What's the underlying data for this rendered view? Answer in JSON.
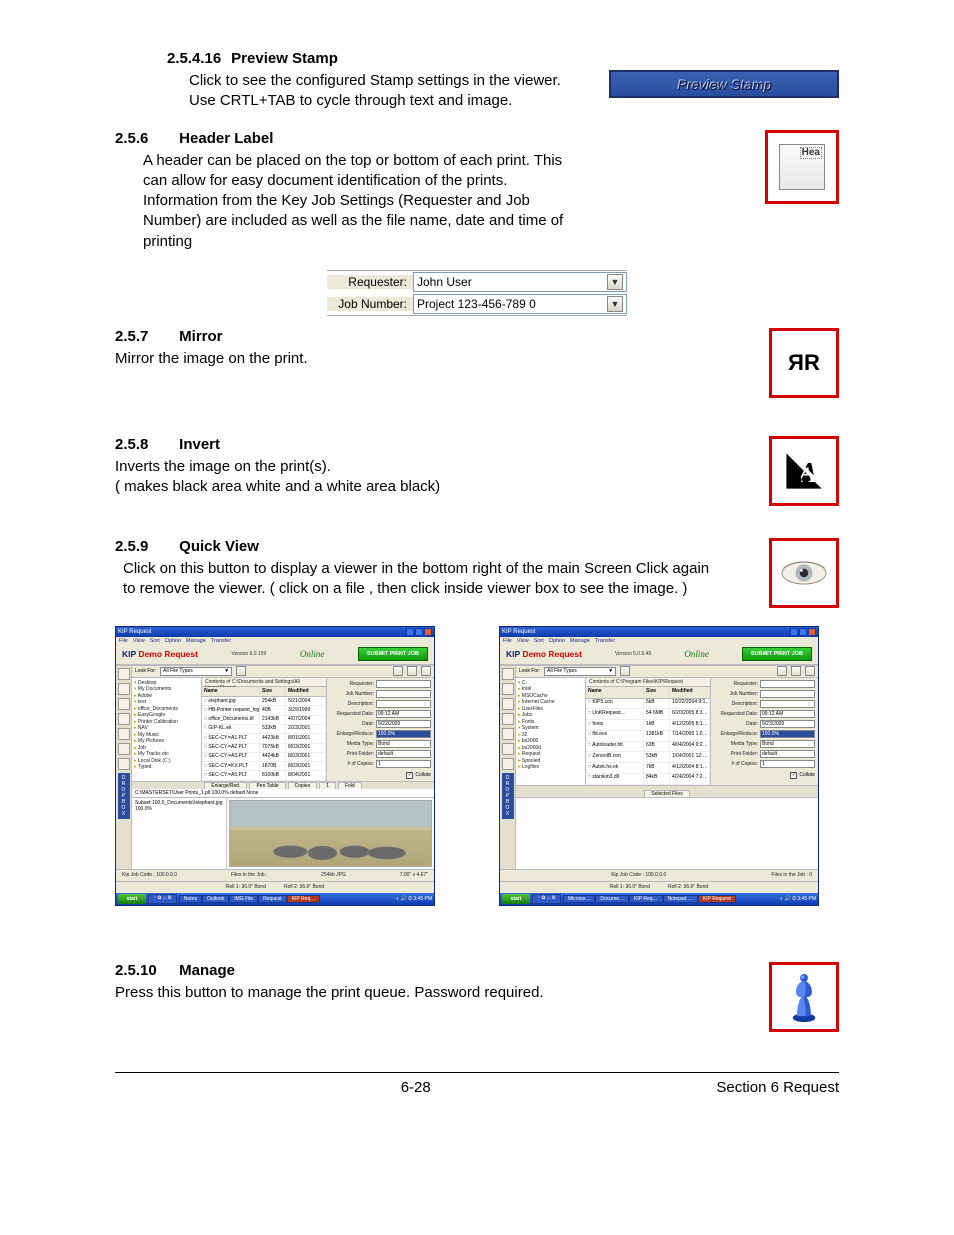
{
  "sections": {
    "preview_stamp": {
      "num": "2.5.4.16",
      "title": "Preview Stamp",
      "body": "Click to see the configured Stamp settings in the viewer.  Use CRTL+TAB to cycle through text and image.",
      "button_label": "Preview Stamp"
    },
    "header_label": {
      "num": "2.5.6",
      "title": "Header Label",
      "body": "A header can be placed on the top or bottom of each print.  This can allow for easy document identification of the prints.  Information from the Key Job Settings (Requester and Job Number) are included as well as the file name, date and time of printing",
      "icon_text": "Hea"
    },
    "requester_form": {
      "requester_label": "Requester:",
      "requester_value": "John User",
      "jobnum_label": "Job Number:",
      "jobnum_value": "Project 123-456-789 0"
    },
    "mirror": {
      "num": "2.5.7",
      "title": "Mirror",
      "body": "Mirror the image on the print.",
      "icon_letters": "ЯR"
    },
    "invert": {
      "num": "2.5.8",
      "title": "Invert",
      "body_l1": "Inverts  the image on the print(s).",
      "body_l2": "( makes black area white and a white area black)"
    },
    "quick_view": {
      "num": "2.5.9",
      "title": "Quick View",
      "body": "Click on this button to display a viewer in the bottom right of the main Screen Click again to remove the viewer. ( click on a file , then click inside viewer box to see the image. )"
    },
    "manage": {
      "num": "2.5.10",
      "title": "Manage",
      "body": "Press this button to manage the print queue. Password required."
    }
  },
  "app": {
    "window_title": "KIP Request",
    "menus": [
      "File",
      "View",
      "Sort",
      "Option",
      "Manage",
      "Transfer"
    ],
    "brand_prefix": "KIP ",
    "brand_demo": "Demo Request",
    "version_left": "Version 6.0.159",
    "version_right": "Version 5.0.5.49",
    "online": "Online",
    "submit_label": "SUBMIT PRINT JOB",
    "lookfor_label": "Look For:",
    "lookfor_left": "All File Types",
    "lookfor_right": "All File Types",
    "path_left": "Contents of C:\\Documents and Settings\\All Users\\Shared",
    "path_right": "Contents of C:\\Program Files\\KIP\\Request",
    "columns": [
      "Name",
      "Size",
      "Modified"
    ],
    "dropbox_letters": [
      "D",
      "R",
      "O",
      "P",
      "B",
      "O",
      "X"
    ],
    "status_left_1": "Kip Job Code :   100.0.0.0",
    "status_left_2": "Files in the Job :",
    "status_left_3": "254kb  JPG",
    "status_left_4": "7.00\" x 4.67\"",
    "status_right_1": "Kip Job Code :   100.0.0.0",
    "status_right_2": "Files in the Job :   0",
    "rolls_left_1": "Roll 1: 36.0\" Bond",
    "rolls_left_2": "Roll 2: 36.0\" Bond",
    "taskbar_start": "start",
    "tree_left": [
      {
        "cls": "folderO",
        "label": "Desktop"
      },
      {
        "cls": "folderO",
        "label": "My Documents"
      },
      {
        "cls": "folder",
        "label": "Adobe"
      },
      {
        "cls": "folderO",
        "label": "test"
      },
      {
        "cls": "folder",
        "label": "office_Documents"
      },
      {
        "cls": "folder",
        "label": "EasyGoogle"
      },
      {
        "cls": "folder",
        "label": "Printer Calibration"
      },
      {
        "cls": "folder",
        "label": "NAV"
      },
      {
        "cls": "folder",
        "label": "My Music"
      },
      {
        "cls": "folder",
        "label": "My Pictures"
      },
      {
        "cls": "folder",
        "label": "Job"
      },
      {
        "cls": "folder",
        "label": "My Tracks etc"
      },
      {
        "cls": "folder",
        "label": "Local Disk (C:)"
      },
      {
        "cls": "folder",
        "label": "Typed"
      }
    ],
    "tree_right": [
      {
        "cls": "folderO",
        "label": "C:"
      },
      {
        "cls": "folder",
        "label": "Intel"
      },
      {
        "cls": "folder",
        "label": "MSOCache"
      },
      {
        "cls": "folder",
        "label": "Internet Cache"
      },
      {
        "cls": "folder",
        "label": "UserFiles"
      },
      {
        "cls": "folder",
        "label": "Jobs"
      },
      {
        "cls": "folder",
        "label": "Fonts"
      },
      {
        "cls": "folderO",
        "label": "System"
      },
      {
        "cls": "folder",
        "label": "32"
      },
      {
        "cls": "folder",
        "label": "bs2000"
      },
      {
        "cls": "folder",
        "label": "bs2000d"
      },
      {
        "cls": "folder",
        "label": "Request"
      },
      {
        "cls": "folder",
        "label": "Spooled"
      },
      {
        "cls": "folder",
        "label": "Logfiles"
      }
    ],
    "files_left": [
      {
        "n": "elephant jpg",
        "s": "254kB",
        "d": "5/21/2004"
      },
      {
        "n": "HB-Printer request_logo…",
        "s": "40B",
        "d": "3/29/1999"
      },
      {
        "n": "office_Documents.tif",
        "s": "2143kB",
        "d": "4/07/2004"
      },
      {
        "n": "GIP-KL.ek",
        "s": "533kB",
        "d": "2/23/2001"
      },
      {
        "n": "SEC-CY.=A1.PLT",
        "s": "4423kB",
        "d": "8/01/2001"
      },
      {
        "n": "SEC-CY.=A2.PLT",
        "s": "7075kB",
        "d": "8/03/2001"
      },
      {
        "n": "SEC-CY.=A3.PLT",
        "s": "4424kB",
        "d": "8/03/2001"
      },
      {
        "n": "SEC-CY.=KX.PLT",
        "s": "1870B",
        "d": "8/03/2001"
      },
      {
        "n": "SEC-CY.=A5.PLT",
        "s": "8100kB",
        "d": "8/04/2001"
      }
    ],
    "files_right": [
      {
        "n": "KIP5.con",
        "s": "5kB",
        "d": "10/22/2004 9:1…"
      },
      {
        "n": "UnKRequest…",
        "s": "54.6MB",
        "d": "6/20/2005 8:3…"
      },
      {
        "n": "fonts",
        "s": "1kB",
        "d": "4/12/2005 8:1…"
      },
      {
        "n": "fld.ece",
        "s": "1381kB",
        "d": "7/14/2005 1:0…"
      },
      {
        "n": "Autoloader.hlt",
        "s": "63B",
        "d": "4/04/2004 9:2…"
      },
      {
        "n": "ZenonIB.con",
        "s": "53kB",
        "d": "1/04/2001 12:…"
      },
      {
        "n": "Autok.hs.ek",
        "s": "7kB",
        "d": "4/12/2004 8:1…"
      },
      {
        "n": "starskin3.dll",
        "s": "84kB",
        "d": "4/24/2004 7:2…"
      }
    ],
    "right_panel": {
      "requester": {
        "label": "Requester:",
        "value": ""
      },
      "jobnum": {
        "label": "Job Number:",
        "value": ""
      },
      "desc": {
        "label": "Description:",
        "value": ""
      },
      "reqdate_left": {
        "label": "Requested Date:",
        "value": "09:12 AM"
      },
      "date_left": {
        "label": "Date:",
        "value": "9/22/2005"
      },
      "enlarge": {
        "label": "Enlarge/Reduce:",
        "value": "100.0%"
      },
      "media": {
        "label": "Media Type:",
        "value": "Bond"
      },
      "fold": {
        "label": "Print Folder:",
        "value": "default"
      },
      "copies": {
        "label": "# of Copies:",
        "value": "1"
      },
      "collate": {
        "label": "Collate",
        "checked": true
      },
      "reqdate_right": {
        "label": "Requested Date:",
        "value": "09:12 AM"
      },
      "date_right": {
        "label": "Date:",
        "value": "9/23/2005"
      }
    },
    "selected_header": "Selected Files",
    "selected_tabs": [
      "Enlarge/Red.",
      "Pen Table",
      "Copies",
      "1",
      "Fold"
    ],
    "selected_file_left": "C:\\MASTERSET\\User Prints_1.plt   100.0%     default     None",
    "taskbar_items_left": [
      "Notes",
      "Outlook",
      "IMG File",
      "Request",
      "KIP Req…"
    ],
    "taskbar_items_right": [
      "Microso…",
      "Docume…",
      "KIP Req…",
      "Notepad …",
      "KIP Request"
    ]
  },
  "footer": {
    "page": "6-28",
    "section": "Section 6     Request"
  },
  "colors": {
    "red_border": "#d40000",
    "xp_blue": "#2a4d9e",
    "xp_blue_light": "#3571e4",
    "xp_green": "#0c9a0c",
    "panel_bg": "#ece9d8"
  }
}
